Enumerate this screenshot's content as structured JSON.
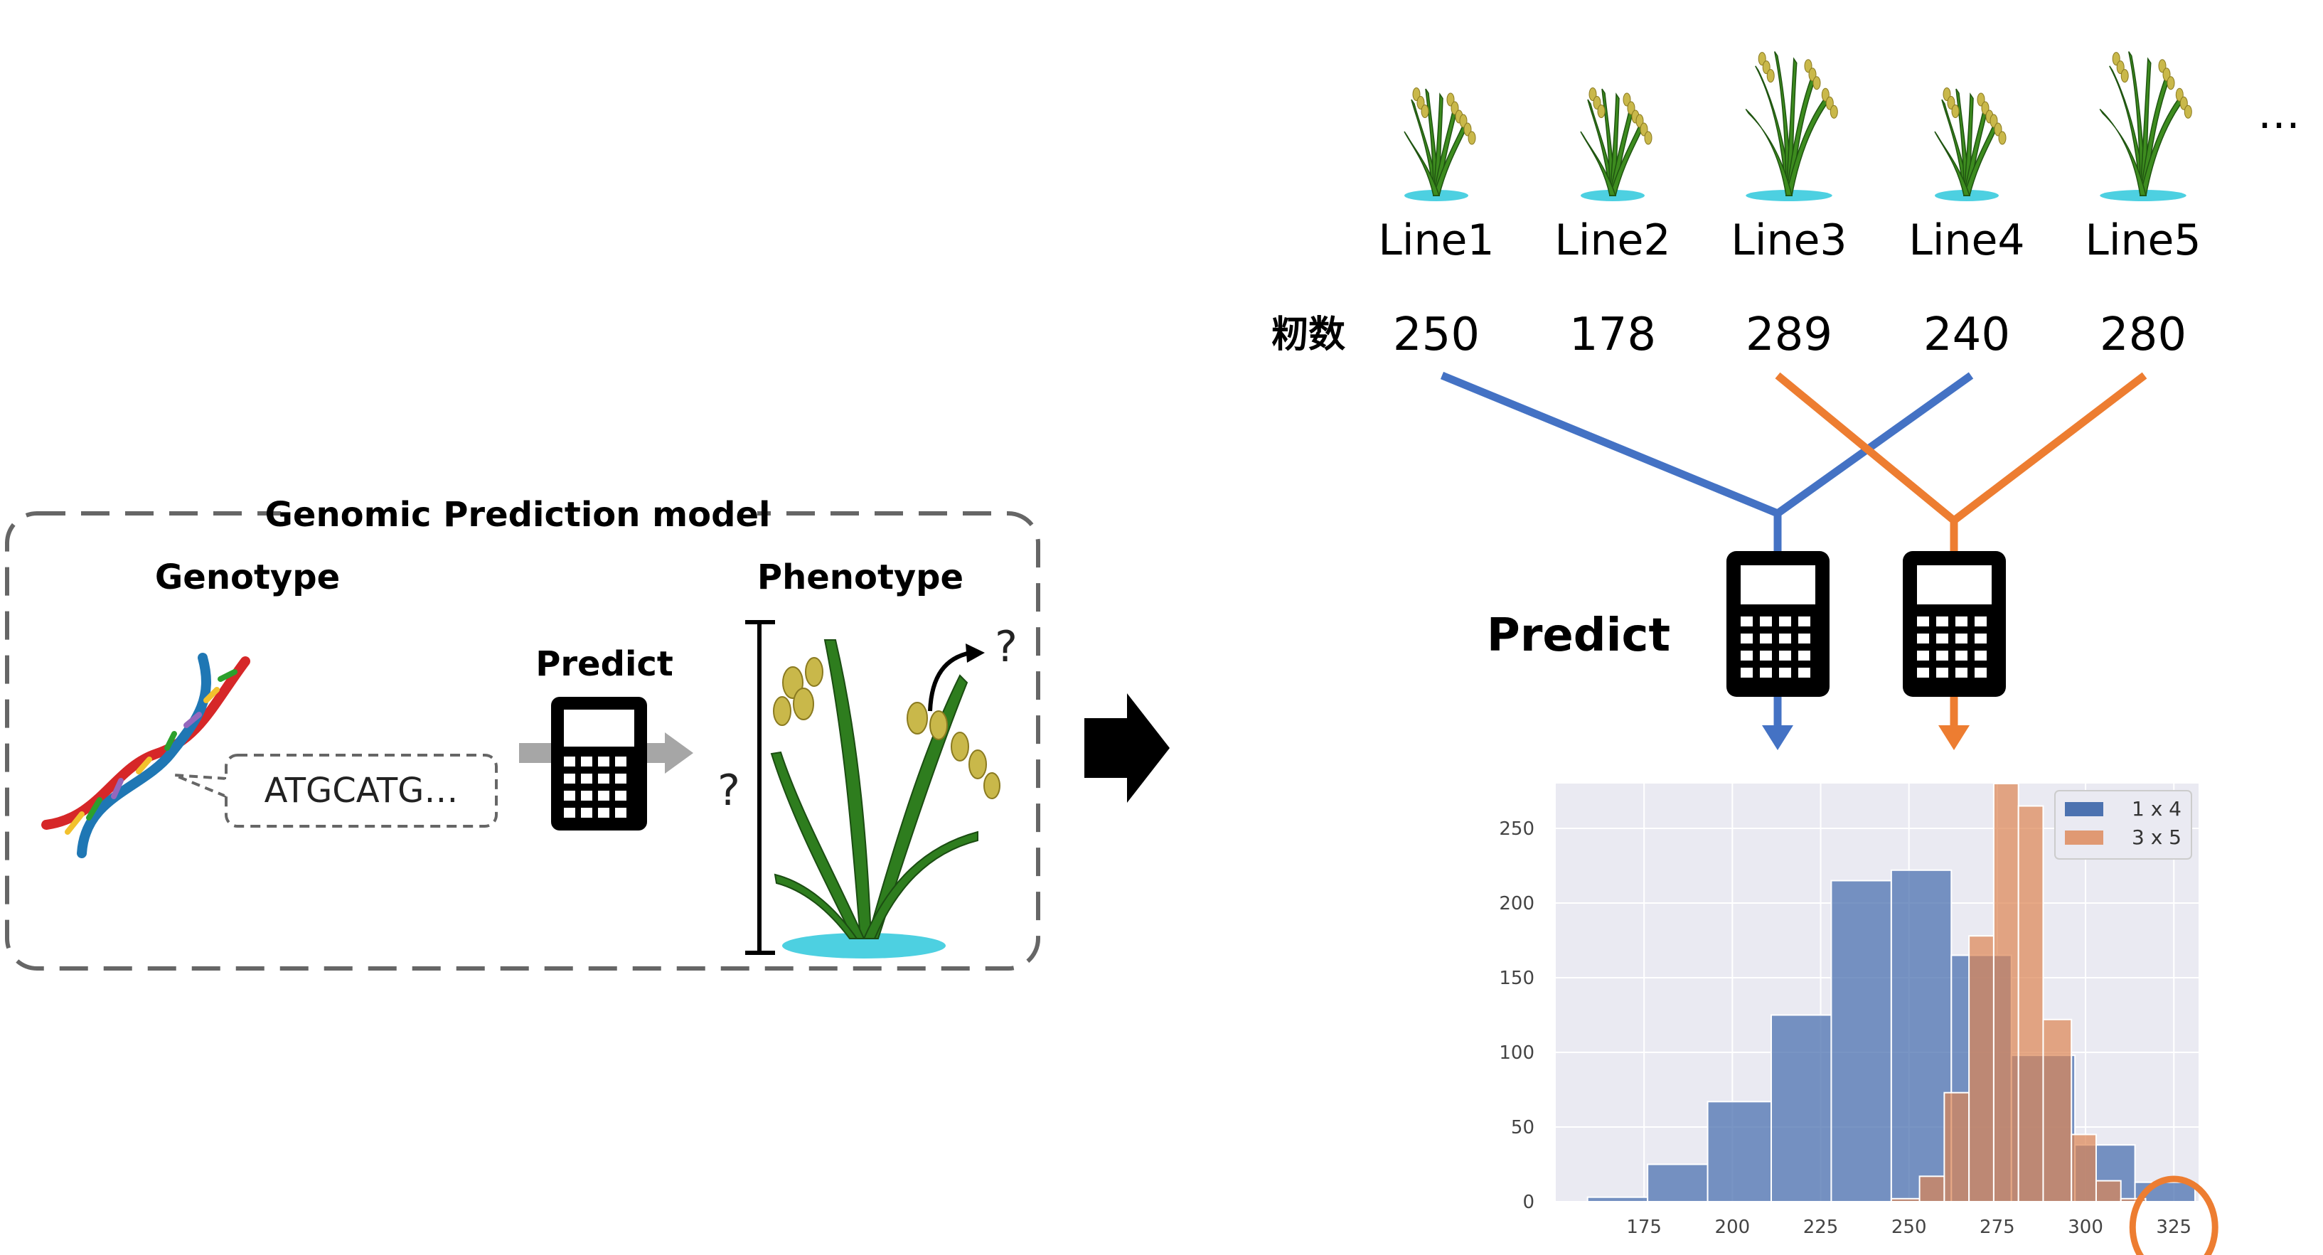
{
  "model_panel": {
    "title": "Genomic Prediction model",
    "genotype_label": "Genotype",
    "phenotype_label": "Phenotype",
    "predict_label": "Predict",
    "sequence_text": "ATGCATG…",
    "unknown_mark": "?",
    "unknown_mark_arrow": "?"
  },
  "lines": {
    "names": [
      "Line1",
      "Line2",
      "Line3",
      "Line4",
      "Line5"
    ],
    "ellipsis": "…",
    "trait_label": "籾数",
    "values": [
      "250",
      "178",
      "289",
      "240",
      "280"
    ]
  },
  "predict_label_right": "Predict",
  "colors": {
    "blue": "#4472c4",
    "orange": "#ed7d31",
    "hist_blue": "#4c72b0",
    "hist_orange": "#dd8452",
    "dashed_border": "#666666",
    "gray_arrow": "#a6a6a6"
  },
  "chart_data": {
    "type": "bar",
    "subtype": "histogram",
    "xlim": [
      150,
      332
    ],
    "ylim": [
      0,
      280
    ],
    "xticks": [
      175,
      200,
      225,
      250,
      275,
      300,
      325
    ],
    "yticks": [
      0,
      50,
      100,
      150,
      200,
      250
    ],
    "grid": true,
    "legend_position": "top-right",
    "highlight_tick": 325,
    "series": [
      {
        "name": "1 x 4",
        "color": "#4c72b0",
        "bins": [
          {
            "x0": 159,
            "x1": 176,
            "value": 3
          },
          {
            "x0": 176,
            "x1": 193,
            "value": 25
          },
          {
            "x0": 193,
            "x1": 211,
            "value": 67
          },
          {
            "x0": 211,
            "x1": 228,
            "value": 125
          },
          {
            "x0": 228,
            "x1": 245,
            "value": 215
          },
          {
            "x0": 245,
            "x1": 262,
            "value": 222
          },
          {
            "x0": 262,
            "x1": 279,
            "value": 165
          },
          {
            "x0": 279,
            "x1": 297,
            "value": 98
          },
          {
            "x0": 297,
            "x1": 314,
            "value": 38
          },
          {
            "x0": 314,
            "x1": 331,
            "value": 13
          }
        ]
      },
      {
        "name": "3 x 5",
        "color": "#dd8452",
        "bins": [
          {
            "x0": 245,
            "x1": 253,
            "value": 2
          },
          {
            "x0": 253,
            "x1": 260,
            "value": 17
          },
          {
            "x0": 260,
            "x1": 267,
            "value": 73
          },
          {
            "x0": 267,
            "x1": 274,
            "value": 178
          },
          {
            "x0": 274,
            "x1": 281,
            "value": 280
          },
          {
            "x0": 281,
            "x1": 288,
            "value": 265
          },
          {
            "x0": 288,
            "x1": 296,
            "value": 122
          },
          {
            "x0": 296,
            "x1": 303,
            "value": 45
          },
          {
            "x0": 303,
            "x1": 310,
            "value": 14
          },
          {
            "x0": 310,
            "x1": 317,
            "value": 2
          }
        ]
      }
    ]
  }
}
